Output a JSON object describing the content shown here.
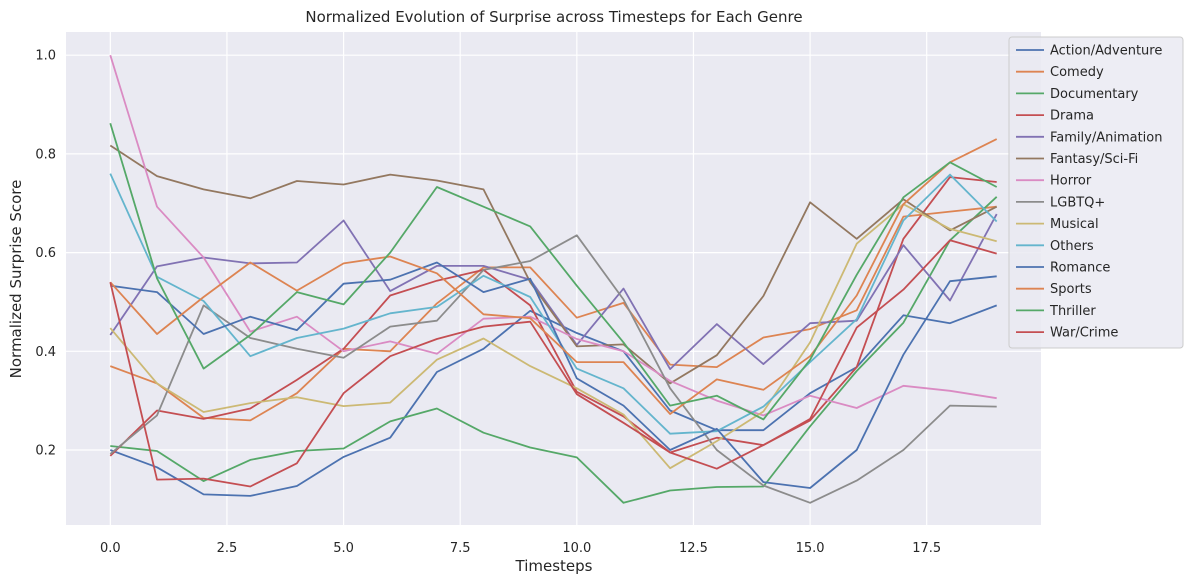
{
  "chart_data": {
    "type": "line",
    "title": "Normalized Evolution of Surprise across Timesteps for Each Genre",
    "xlabel": "Timesteps",
    "ylabel": "Normalized Surprise Score",
    "xlim": [
      -0.95,
      19.95
    ],
    "ylim": [
      0.048,
      1.047
    ],
    "xticks": [
      0.0,
      2.5,
      5.0,
      7.5,
      10.0,
      12.5,
      15.0,
      17.5
    ],
    "xtick_labels": [
      "0.0",
      "2.5",
      "5.0",
      "7.5",
      "10.0",
      "12.5",
      "15.0",
      "17.5"
    ],
    "yticks": [
      0.2,
      0.4,
      0.6,
      0.8,
      1.0
    ],
    "ytick_labels": [
      "0.2",
      "0.4",
      "0.6",
      "0.8",
      "1.0"
    ],
    "grid": true,
    "legend_position": "upper-right outside",
    "x": [
      0,
      1,
      2,
      3,
      4,
      5,
      6,
      7,
      8,
      9,
      10,
      11,
      12,
      13,
      14,
      15,
      16,
      17,
      18,
      19
    ],
    "series": [
      {
        "name": "Action/Adventure",
        "color": "#4c72b0",
        "values": [
          0.2,
          0.165,
          0.11,
          0.107,
          0.127,
          0.186,
          0.225,
          0.358,
          0.405,
          0.482,
          0.437,
          0.4,
          0.28,
          0.24,
          0.24,
          0.315,
          0.368,
          0.473,
          0.457,
          0.493
        ]
      },
      {
        "name": "Comedy",
        "color": "#dd8452",
        "values": [
          0.37,
          0.335,
          0.265,
          0.26,
          0.315,
          0.405,
          0.4,
          0.497,
          0.57,
          0.57,
          0.468,
          0.498,
          0.373,
          0.368,
          0.428,
          0.445,
          0.483,
          0.673,
          0.683,
          0.693
        ]
      },
      {
        "name": "Documentary",
        "color": "#55a868",
        "values": [
          0.208,
          0.198,
          0.137,
          0.18,
          0.198,
          0.203,
          0.258,
          0.284,
          0.235,
          0.205,
          0.185,
          0.093,
          0.118,
          0.125,
          0.126,
          0.248,
          0.36,
          0.458,
          0.625,
          0.713
        ]
      },
      {
        "name": "Drama",
        "color": "#c44e52",
        "values": [
          0.188,
          0.28,
          0.263,
          0.284,
          0.342,
          0.405,
          0.513,
          0.543,
          0.565,
          0.493,
          0.318,
          0.268,
          0.195,
          0.225,
          0.21,
          0.26,
          0.368,
          0.628,
          0.753,
          0.743
        ]
      },
      {
        "name": "Family/Animation",
        "color": "#8172b3",
        "values": [
          0.433,
          0.572,
          0.59,
          0.578,
          0.58,
          0.665,
          0.522,
          0.573,
          0.573,
          0.545,
          0.413,
          0.527,
          0.364,
          0.455,
          0.374,
          0.457,
          0.462,
          0.615,
          0.503,
          0.678
        ]
      },
      {
        "name": "Fantasy/Sci-Fi",
        "color": "#937860",
        "values": [
          0.817,
          0.755,
          0.728,
          0.71,
          0.745,
          0.738,
          0.758,
          0.746,
          0.728,
          0.54,
          0.41,
          0.414,
          0.335,
          0.392,
          0.512,
          0.702,
          0.628,
          0.708,
          0.645,
          0.693
        ]
      },
      {
        "name": "Horror",
        "color": "#da8bc3",
        "values": [
          1.0,
          0.693,
          0.59,
          0.44,
          0.47,
          0.4,
          0.42,
          0.395,
          0.466,
          0.47,
          0.425,
          0.4,
          0.34,
          0.3,
          0.27,
          0.31,
          0.285,
          0.33,
          0.32,
          0.305
        ]
      },
      {
        "name": "LGBTQ+",
        "color": "#8c8c8c",
        "values": [
          0.192,
          0.27,
          0.493,
          0.427,
          0.405,
          0.387,
          0.45,
          0.462,
          0.565,
          0.583,
          0.635,
          0.505,
          0.325,
          0.2,
          0.128,
          0.093,
          0.138,
          0.2,
          0.29,
          0.288
        ]
      },
      {
        "name": "Musical",
        "color": "#ccb974",
        "values": [
          0.447,
          0.335,
          0.277,
          0.295,
          0.307,
          0.289,
          0.296,
          0.383,
          0.426,
          0.37,
          0.325,
          0.272,
          0.163,
          0.218,
          0.278,
          0.418,
          0.618,
          0.698,
          0.648,
          0.623
        ]
      },
      {
        "name": "Others",
        "color": "#64b5cd",
        "values": [
          0.76,
          0.551,
          0.502,
          0.39,
          0.427,
          0.446,
          0.477,
          0.49,
          0.553,
          0.51,
          0.365,
          0.325,
          0.233,
          0.238,
          0.288,
          0.378,
          0.465,
          0.665,
          0.758,
          0.663
        ]
      },
      {
        "name": "Romance",
        "color": "#4c72b0",
        "values": [
          0.533,
          0.52,
          0.435,
          0.47,
          0.443,
          0.537,
          0.545,
          0.58,
          0.52,
          0.547,
          0.345,
          0.29,
          0.2,
          0.243,
          0.135,
          0.123,
          0.2,
          0.393,
          0.542,
          0.552
        ]
      },
      {
        "name": "Sports",
        "color": "#dd8452",
        "values": [
          0.54,
          0.435,
          0.51,
          0.58,
          0.523,
          0.578,
          0.592,
          0.558,
          0.475,
          0.467,
          0.378,
          0.378,
          0.273,
          0.343,
          0.322,
          0.39,
          0.513,
          0.698,
          0.783,
          0.83
        ]
      },
      {
        "name": "Thriller",
        "color": "#55a868",
        "values": [
          0.862,
          0.548,
          0.365,
          0.433,
          0.52,
          0.495,
          0.6,
          0.733,
          0.693,
          0.653,
          0.533,
          0.418,
          0.29,
          0.31,
          0.262,
          0.383,
          0.555,
          0.712,
          0.783,
          0.733
        ]
      },
      {
        "name": "War/Crime",
        "color": "#c44e52",
        "values": [
          0.54,
          0.14,
          0.142,
          0.126,
          0.173,
          0.315,
          0.39,
          0.425,
          0.45,
          0.46,
          0.313,
          0.255,
          0.195,
          0.162,
          0.21,
          0.263,
          0.448,
          0.525,
          0.625,
          0.598
        ]
      }
    ]
  }
}
